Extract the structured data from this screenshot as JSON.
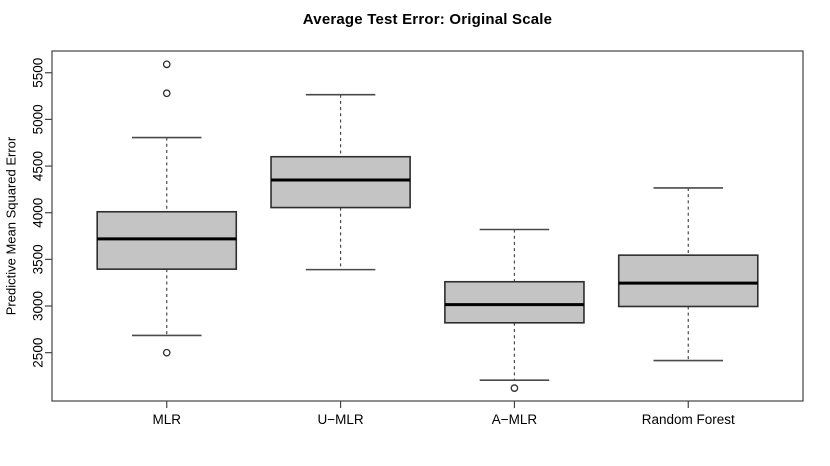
{
  "chart_data": {
    "type": "boxplot",
    "title": "Average Test Error: Original Scale",
    "ylabel": "Predictive Mean Squared Error",
    "xlabel": "",
    "categories": [
      "MLR",
      "U−MLR",
      "A−MLR",
      "Random Forest"
    ],
    "yticks": [
      "2500",
      "3000",
      "3500",
      "4000",
      "4500",
      "5000",
      "5500"
    ],
    "ylim": [
      1982,
      5733
    ],
    "grid": false,
    "legend": "none",
    "series": [
      {
        "label": "MLR",
        "whisker_low": 2685,
        "q1": 3395,
        "median": 3720,
        "q3": 4010,
        "whisker_high": 4805,
        "outliers": [
          2500,
          5280,
          5590
        ]
      },
      {
        "label": "U−MLR",
        "whisker_low": 3390,
        "q1": 4055,
        "median": 4350,
        "q3": 4600,
        "whisker_high": 5265,
        "outliers": []
      },
      {
        "label": "A−MLR",
        "whisker_low": 2205,
        "q1": 2820,
        "median": 3015,
        "q3": 3260,
        "whisker_high": 3820,
        "outliers": [
          2120
        ]
      },
      {
        "label": "Random Forest",
        "whisker_low": 2415,
        "q1": 2995,
        "median": 3245,
        "q3": 3545,
        "whisker_high": 4265,
        "outliers": []
      }
    ],
    "colors": {
      "background": "#ffffff",
      "box_fill": "#c4c4c4",
      "box_stroke": "#2e2e2e",
      "median": "#000000",
      "whisker": "#4a4a4a",
      "frame": "#444444",
      "text": "#000000"
    }
  }
}
